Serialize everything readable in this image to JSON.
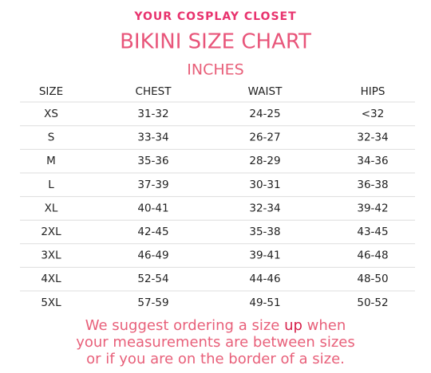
{
  "header": {
    "brand": "YOUR COSPLAY CLOSET",
    "title": "BIKINI SIZE CHART",
    "subtitle": "INCHES"
  },
  "table": {
    "columns": [
      "SIZE",
      "CHEST",
      "WAIST",
      "HIPS"
    ],
    "rows": [
      [
        "XS",
        "31-32",
        "24-25",
        "<32"
      ],
      [
        "S",
        "33-34",
        "26-27",
        "32-34"
      ],
      [
        "M",
        "35-36",
        "28-29",
        "34-36"
      ],
      [
        "L",
        "37-39",
        "30-31",
        "36-38"
      ],
      [
        "XL",
        "40-41",
        "32-34",
        "39-42"
      ],
      [
        "2XL",
        "42-45",
        "35-38",
        "43-45"
      ],
      [
        "3XL",
        "46-49",
        "39-41",
        "46-48"
      ],
      [
        "4XL",
        "52-54",
        "44-46",
        "48-50"
      ],
      [
        "5XL",
        "57-59",
        "49-51",
        "50-52"
      ]
    ]
  },
  "note": {
    "line1_start": "We suggest ordering a size ",
    "emphasis": "up",
    "line1_end": " when",
    "line2": "your measurements are between sizes",
    "line3": "or if you are on the border of a size."
  }
}
